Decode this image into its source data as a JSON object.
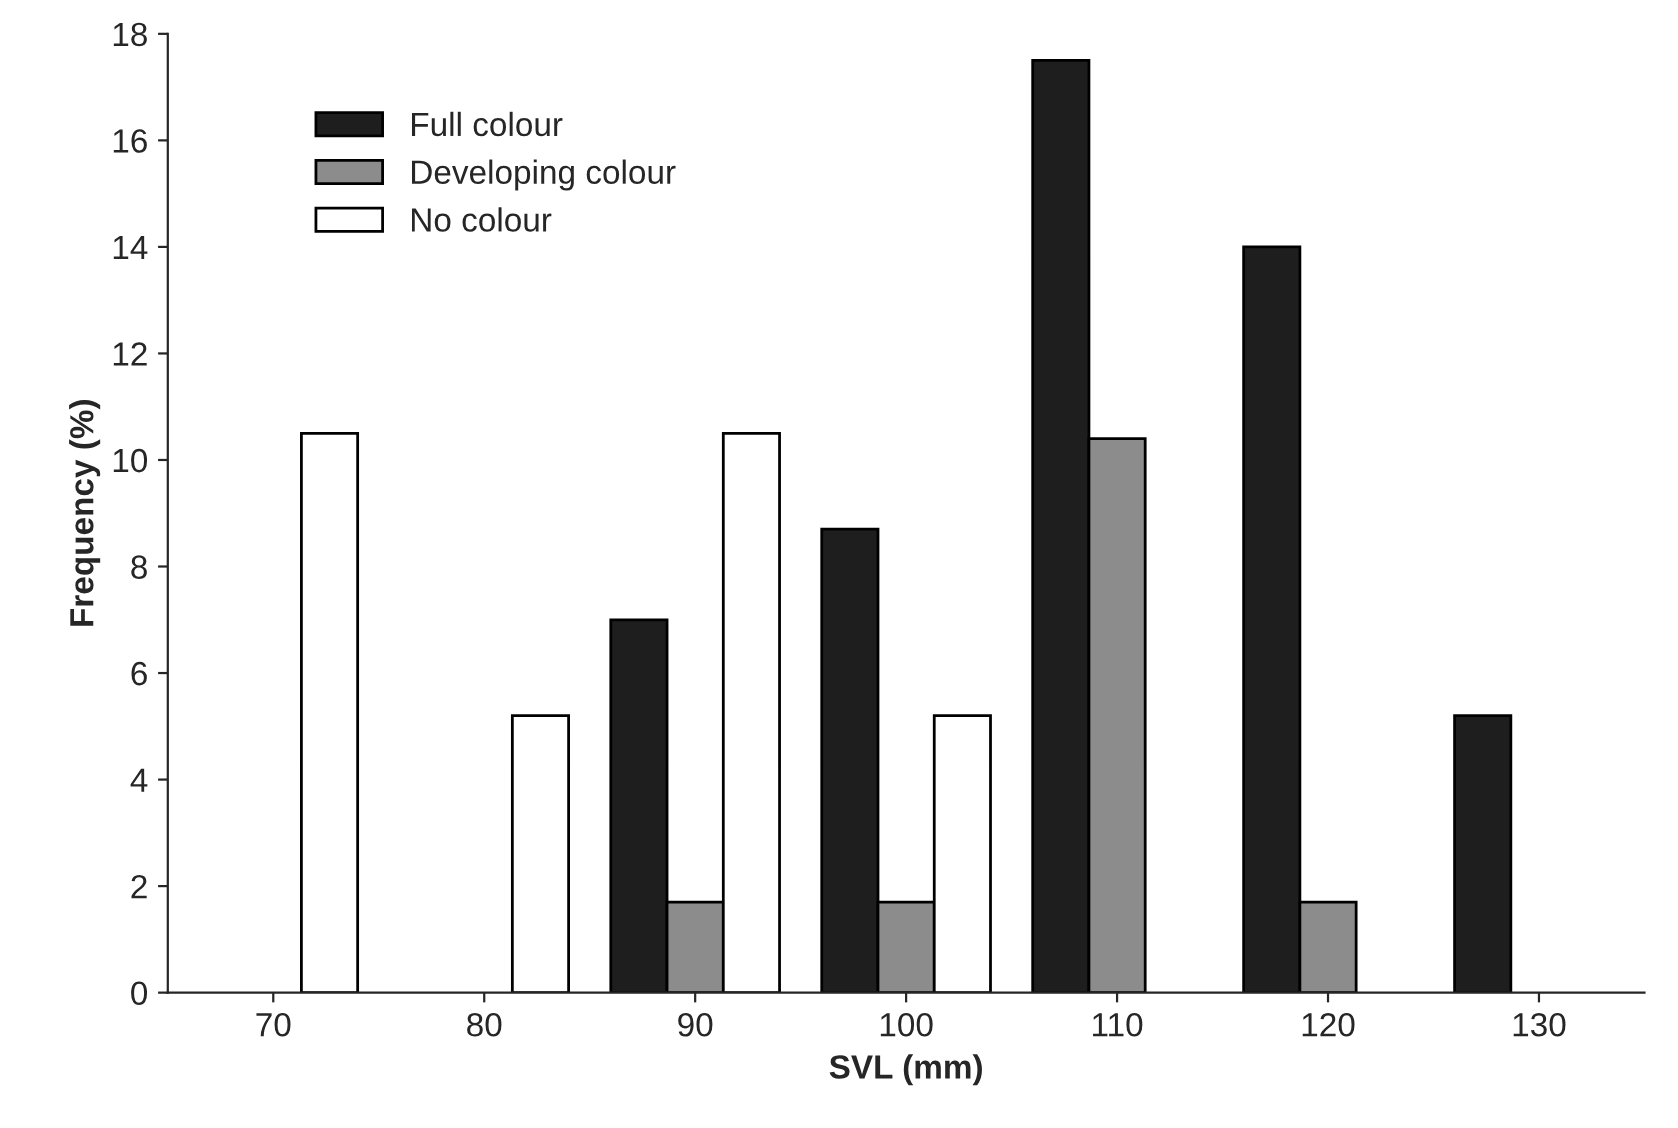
{
  "chart_data": {
    "type": "bar",
    "xlabel": "SVL (mm)",
    "ylabel": "Frequency (%)",
    "categories": [
      "70",
      "80",
      "90",
      "100",
      "110",
      "120",
      "130"
    ],
    "series": [
      {
        "name": "Full colour",
        "color": "#1e1e1e",
        "values": [
          null,
          null,
          7,
          8.7,
          17.5,
          14,
          5.2
        ]
      },
      {
        "name": "Developing colour",
        "color": "#8c8c8c",
        "values": [
          null,
          null,
          1.7,
          1.7,
          10.4,
          1.7,
          null
        ]
      },
      {
        "name": "No colour",
        "color": "#ffffff",
        "values": [
          10.5,
          5.2,
          10.5,
          5.2,
          null,
          null,
          null
        ]
      }
    ],
    "ylim": [
      0,
      18
    ],
    "yticks": [
      0,
      2,
      4,
      6,
      8,
      10,
      12,
      14,
      16,
      18
    ],
    "grid": false,
    "legend": "top left"
  }
}
